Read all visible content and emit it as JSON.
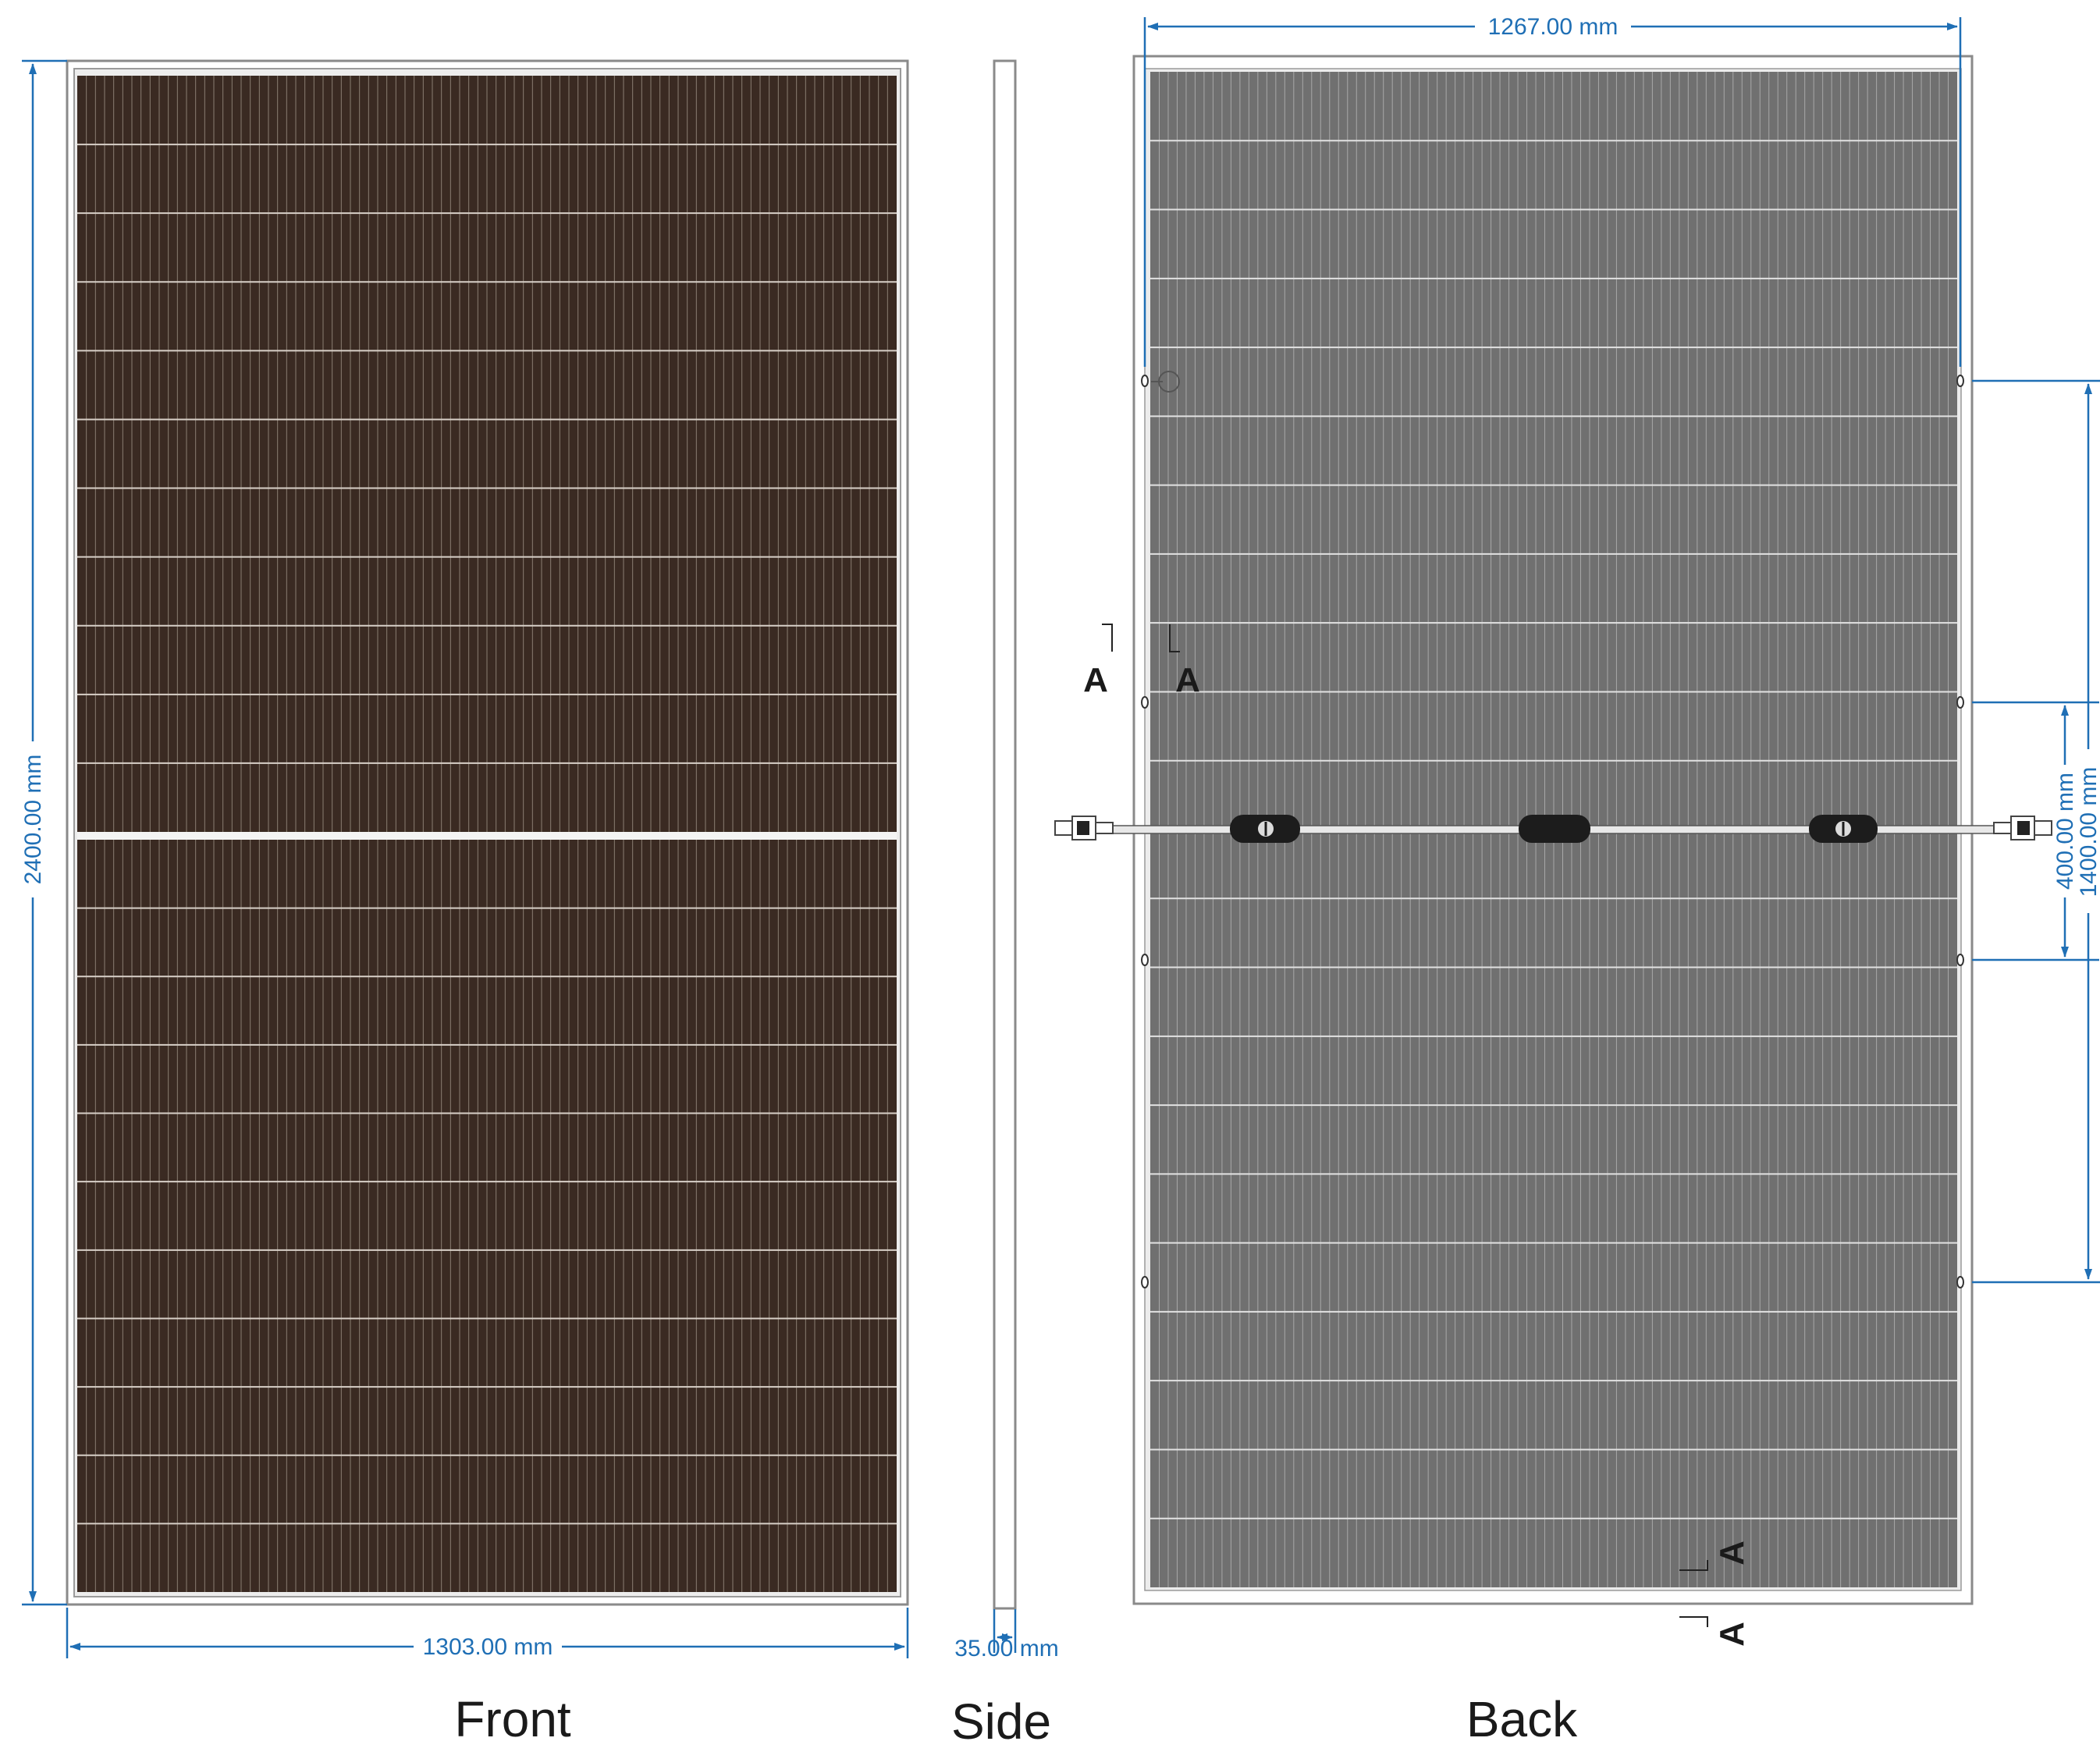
{
  "views": {
    "front_label": "Front",
    "side_label": "Side",
    "back_label": "Back"
  },
  "dimensions": {
    "height": "2400.00 mm",
    "width": "1303.00 mm",
    "thickness": "35.00 mm",
    "back_hole_span": "1267.00 mm",
    "hole_spacing_short": "400.00 mm",
    "hole_spacing_long": "1400.00 mm"
  },
  "section_marker": "A",
  "colors": {
    "dimension": "#1f6fb5",
    "front_cells": "#3a2a22",
    "back_cells": "#707070",
    "frame": "#c8c8c8",
    "junction_box": "#1c1c1c"
  }
}
